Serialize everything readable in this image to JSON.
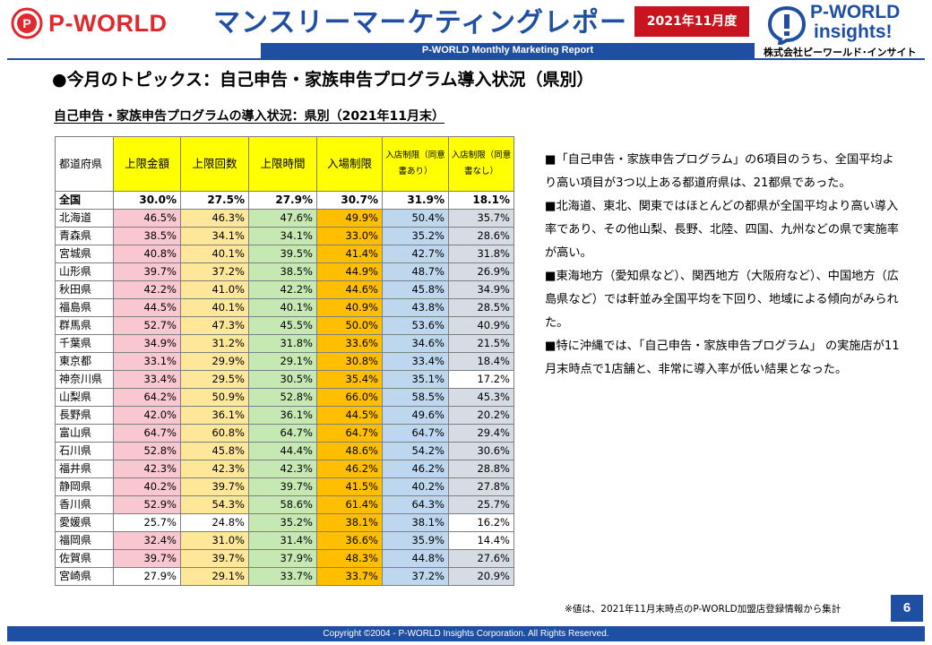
{
  "header": {
    "logo_text": "P-WORLD",
    "title": "マンスリーマーケティングレポート",
    "date_badge": "2021年11月度",
    "subtitle": "P-WORLD Monthly Marketing Report",
    "insights_logo_line1": "P-WORLD",
    "insights_logo_line2": "insights!",
    "company": "株式会社ピーワールド･インサイト"
  },
  "colors": {
    "brand_blue": "#1f4fa3",
    "brand_red": "#e0282e",
    "badge_red": "#c8141f",
    "header_yellow": "#ffff00",
    "pink": "#f9c7cf",
    "light_yellow": "#ffe79a",
    "light_green": "#c6e9b4",
    "orange": "#ffbf00",
    "light_blue": "#bdd7ee",
    "gray_blue": "#d6dce4"
  },
  "section_heading": "●今月のトピックス：自己申告・家族申告プログラム導入状況（県別）",
  "table": {
    "title": "自己申告・家族申告プログラムの導入状況：県別（2021年11月末）",
    "headers": [
      "都道府県",
      "上限金額",
      "上限回数",
      "上限時間",
      "入場制限",
      "入店制限（同意書あり）",
      "入店制限（同意書なし）"
    ],
    "total": {
      "pref": "全国",
      "values": [
        "30.0%",
        "27.5%",
        "27.9%",
        "30.7%",
        "31.9%",
        "18.1%"
      ]
    },
    "rows": [
      {
        "pref": "北海道",
        "values": [
          "46.5%",
          "46.3%",
          "47.6%",
          "49.9%",
          "50.4%",
          "35.7%"
        ],
        "hl": [
          1,
          1,
          1,
          1,
          1,
          1
        ]
      },
      {
        "pref": "青森県",
        "values": [
          "38.5%",
          "34.1%",
          "34.1%",
          "33.0%",
          "35.2%",
          "28.6%"
        ],
        "hl": [
          1,
          1,
          1,
          1,
          1,
          1
        ]
      },
      {
        "pref": "宮城県",
        "values": [
          "40.8%",
          "40.1%",
          "39.5%",
          "41.4%",
          "42.7%",
          "31.8%"
        ],
        "hl": [
          1,
          1,
          1,
          1,
          1,
          1
        ]
      },
      {
        "pref": "山形県",
        "values": [
          "39.7%",
          "37.2%",
          "38.5%",
          "44.9%",
          "48.7%",
          "26.9%"
        ],
        "hl": [
          1,
          1,
          1,
          1,
          1,
          1
        ]
      },
      {
        "pref": "秋田県",
        "values": [
          "42.2%",
          "41.0%",
          "42.2%",
          "44.6%",
          "45.8%",
          "34.9%"
        ],
        "hl": [
          1,
          1,
          1,
          1,
          1,
          1
        ]
      },
      {
        "pref": "福島県",
        "values": [
          "44.5%",
          "40.1%",
          "40.1%",
          "40.9%",
          "43.8%",
          "28.5%"
        ],
        "hl": [
          1,
          1,
          1,
          1,
          1,
          1
        ]
      },
      {
        "pref": "群馬県",
        "values": [
          "52.7%",
          "47.3%",
          "45.5%",
          "50.0%",
          "53.6%",
          "40.9%"
        ],
        "hl": [
          1,
          1,
          1,
          1,
          1,
          1
        ]
      },
      {
        "pref": "千葉県",
        "values": [
          "34.9%",
          "31.2%",
          "31.8%",
          "33.6%",
          "34.6%",
          "21.5%"
        ],
        "hl": [
          1,
          1,
          1,
          1,
          1,
          1
        ]
      },
      {
        "pref": "東京都",
        "values": [
          "33.1%",
          "29.9%",
          "29.1%",
          "30.8%",
          "33.4%",
          "18.4%"
        ],
        "hl": [
          1,
          1,
          1,
          1,
          1,
          1
        ]
      },
      {
        "pref": "神奈川県",
        "values": [
          "33.4%",
          "29.5%",
          "30.5%",
          "35.4%",
          "35.1%",
          "17.2%"
        ],
        "hl": [
          1,
          1,
          1,
          1,
          1,
          0
        ]
      },
      {
        "pref": "山梨県",
        "values": [
          "64.2%",
          "50.9%",
          "52.8%",
          "66.0%",
          "58.5%",
          "45.3%"
        ],
        "hl": [
          1,
          1,
          1,
          1,
          1,
          1
        ]
      },
      {
        "pref": "長野県",
        "values": [
          "42.0%",
          "36.1%",
          "36.1%",
          "44.5%",
          "49.6%",
          "20.2%"
        ],
        "hl": [
          1,
          1,
          1,
          1,
          1,
          1
        ]
      },
      {
        "pref": "富山県",
        "values": [
          "64.7%",
          "60.8%",
          "64.7%",
          "64.7%",
          "64.7%",
          "29.4%"
        ],
        "hl": [
          1,
          1,
          1,
          1,
          1,
          1
        ]
      },
      {
        "pref": "石川県",
        "values": [
          "52.8%",
          "45.8%",
          "44.4%",
          "48.6%",
          "54.2%",
          "30.6%"
        ],
        "hl": [
          1,
          1,
          1,
          1,
          1,
          1
        ]
      },
      {
        "pref": "福井県",
        "values": [
          "42.3%",
          "42.3%",
          "42.3%",
          "46.2%",
          "46.2%",
          "28.8%"
        ],
        "hl": [
          1,
          1,
          1,
          1,
          1,
          1
        ]
      },
      {
        "pref": "静岡県",
        "values": [
          "40.2%",
          "39.7%",
          "39.7%",
          "41.5%",
          "40.2%",
          "27.8%"
        ],
        "hl": [
          1,
          1,
          1,
          1,
          1,
          1
        ]
      },
      {
        "pref": "香川県",
        "values": [
          "52.9%",
          "54.3%",
          "58.6%",
          "61.4%",
          "64.3%",
          "25.7%"
        ],
        "hl": [
          1,
          1,
          1,
          1,
          1,
          1
        ]
      },
      {
        "pref": "愛媛県",
        "values": [
          "25.7%",
          "24.8%",
          "35.2%",
          "38.1%",
          "38.1%",
          "16.2%"
        ],
        "hl": [
          0,
          0,
          1,
          1,
          1,
          0
        ]
      },
      {
        "pref": "福岡県",
        "values": [
          "32.4%",
          "31.0%",
          "31.4%",
          "36.6%",
          "35.9%",
          "14.4%"
        ],
        "hl": [
          1,
          1,
          1,
          1,
          1,
          0
        ]
      },
      {
        "pref": "佐賀県",
        "values": [
          "39.7%",
          "39.7%",
          "37.9%",
          "48.3%",
          "44.8%",
          "27.6%"
        ],
        "hl": [
          1,
          1,
          1,
          1,
          1,
          1
        ]
      },
      {
        "pref": "宮崎県",
        "values": [
          "27.9%",
          "29.1%",
          "33.7%",
          "33.7%",
          "37.2%",
          "20.9%"
        ],
        "hl": [
          0,
          1,
          1,
          1,
          1,
          1
        ]
      }
    ]
  },
  "bullets": [
    "■「自己申告・家族申告プログラム」の6項目のうち、全国平均より高い項目が3つ以上ある都道府県は、21都県であった。",
    "■北海道、東北、関東ではほとんどの都県が全国平均より高い導入率であり、その他山梨、長野、北陸、四国、九州などの県で実施率が高い。",
    "■東海地方（愛知県など）、関西地方（大阪府など）、中国地方（広島県など）では軒並み全国平均を下回り、地域による傾向がみられた。",
    "■特に沖縄では、「自己申告・家族申告プログラム」 の実施店が11月末時点で1店舗と、非常に導入率が低い結果となった。"
  ],
  "footnote": "※値は、2021年11月末時点のP-WORLD加盟店登録情報から集計",
  "page_number": "6",
  "footer": "Copyright ©2004 -  P-WORLD Insights Corporation. All Rights Reserved."
}
